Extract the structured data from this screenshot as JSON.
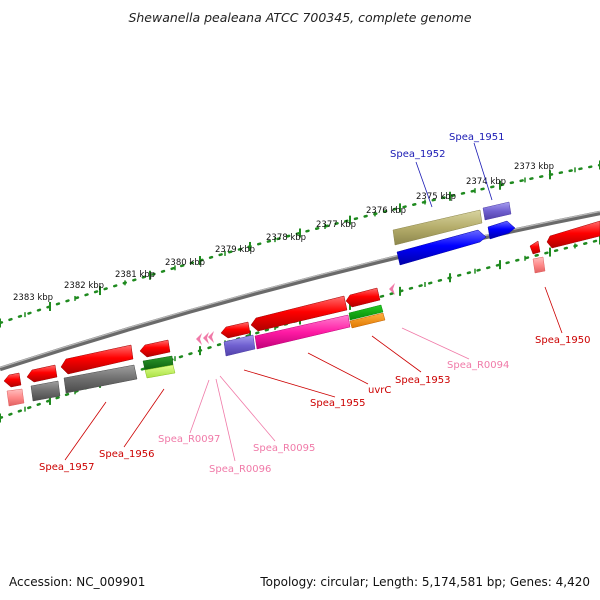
{
  "title": "Shewanella pealeana ATCC 700345, complete genome",
  "footer": {
    "accession": "Accession: NC_009901",
    "topology": "Topology: circular; Length: 5,174,581 bp; Genes: 4,420"
  },
  "colors": {
    "backbone": "#808080",
    "ticks": "#1f8a1f",
    "forward_label": "#1a1ab4",
    "reverse_label": "#cc0000",
    "rna_label": "#f07aa8"
  },
  "outer_scale": [
    {
      "label": "2373 kbp"
    },
    {
      "label": "2374 kbp"
    },
    {
      "label": "2375 kbp"
    },
    {
      "label": "2376 kbp"
    },
    {
      "label": "2377 kbp"
    },
    {
      "label": "2378 kbp"
    },
    {
      "label": "2379 kbp"
    },
    {
      "label": "2380 kbp"
    },
    {
      "label": "2381 kbp"
    },
    {
      "label": "2382 kbp"
    },
    {
      "label": "2383 kbp"
    }
  ],
  "forward_features": [
    {
      "name": "Spea_1951",
      "color": "#1a1ab4"
    },
    {
      "name": "Spea_1952",
      "color": "#1a1ab4"
    }
  ],
  "reverse_features": [
    {
      "name": "Spea_1950",
      "color": "#cc0000"
    },
    {
      "name": "Spea_R0094",
      "color": "#f07aa8"
    },
    {
      "name": "Spea_1953",
      "color": "#cc0000"
    },
    {
      "name": "uvrC",
      "color": "#cc0000"
    },
    {
      "name": "Spea_1955",
      "color": "#cc0000"
    },
    {
      "name": "Spea_R0095",
      "color": "#f07aa8"
    },
    {
      "name": "Spea_R0096",
      "color": "#f07aa8"
    },
    {
      "name": "Spea_R0097",
      "color": "#f07aa8"
    },
    {
      "name": "Spea_1956",
      "color": "#cc0000"
    },
    {
      "name": "Spea_1957",
      "color": "#cc0000"
    }
  ]
}
